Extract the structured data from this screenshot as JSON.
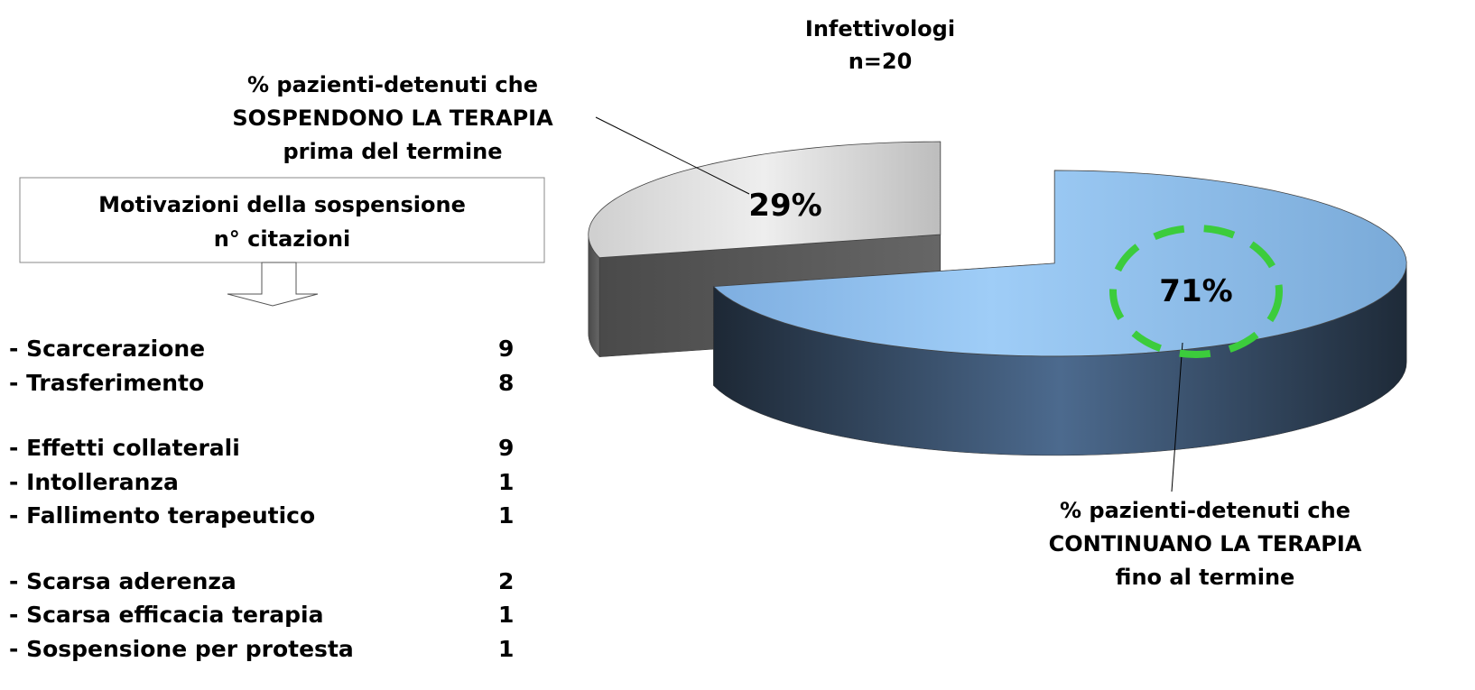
{
  "chart_data": {
    "type": "pie",
    "title": "Infettivologi",
    "subtitle": "n=20",
    "categories": [
      "% pazienti-detenuti che\nSOSPENDONO LA TERAPIA\nprima del termine",
      "% pazienti-detenuti che\nCONTINUANO LA TERAPIA\nfino al termine"
    ],
    "values": [
      29,
      71
    ],
    "value_labels": [
      "29%",
      "71%"
    ],
    "colors": [
      "#d9d9d9",
      "#8fbdea"
    ]
  },
  "reasons": {
    "title": "Motivazioni della sospensione\nn° citazioni",
    "groups": [
      [
        {
          "label": "- Scarcerazione",
          "count": 9
        },
        {
          "label": "- Trasferimento",
          "count": 8
        }
      ],
      [
        {
          "label": "- Effetti collaterali",
          "count": 9
        },
        {
          "label": "- Intolleranza",
          "count": 1
        },
        {
          "label": "- Fallimento terapeutico",
          "count": 1
        }
      ],
      [
        {
          "label": "- Scarsa aderenza",
          "count": 2
        },
        {
          "label": "- Scarsa efficacia terapia",
          "count": 1
        },
        {
          "label": "- Sospensione per protesta",
          "count": 1
        }
      ]
    ]
  }
}
